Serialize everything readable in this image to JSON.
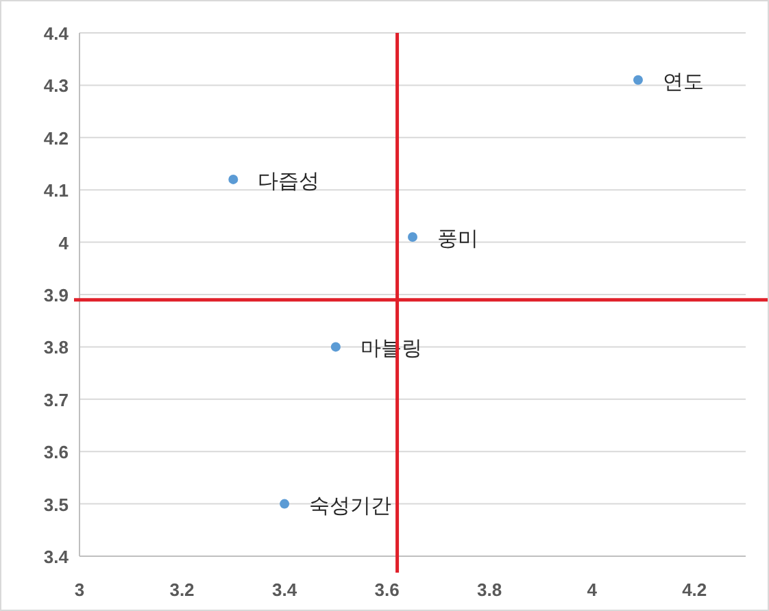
{
  "chart_data": {
    "type": "scatter",
    "x": [
      4.09,
      3.3,
      3.65,
      3.5,
      3.4
    ],
    "values": [
      4.31,
      4.12,
      4.01,
      3.8,
      3.5
    ],
    "color": "#5b9bd5",
    "marker": "circle",
    "annotations": [
      {
        "text": "연도",
        "x": 4.09,
        "y": 4.31
      },
      {
        "text": "다즙성",
        "x": 3.3,
        "y": 4.12
      },
      {
        "text": "풍미",
        "x": 3.65,
        "y": 4.01
      },
      {
        "text": "마블링",
        "x": 3.5,
        "y": 3.8
      },
      {
        "text": "숙성기간",
        "x": 3.4,
        "y": 3.5
      }
    ],
    "xlim": [
      3,
      4.3
    ],
    "xticks": [
      3,
      3.2,
      3.4,
      3.6,
      3.8,
      4,
      4.2
    ],
    "ylim": [
      3.4,
      4.4
    ],
    "yticks": [
      3.4,
      3.5,
      3.6,
      3.7,
      3.8,
      3.9,
      4,
      4.1,
      4.2,
      4.3,
      4.4
    ],
    "grid": "y",
    "ref_lines": [
      {
        "axis": "x",
        "value": 3.62,
        "color": "#e0202a"
      },
      {
        "axis": "y",
        "value": 3.89,
        "color": "#e0202a"
      }
    ]
  }
}
